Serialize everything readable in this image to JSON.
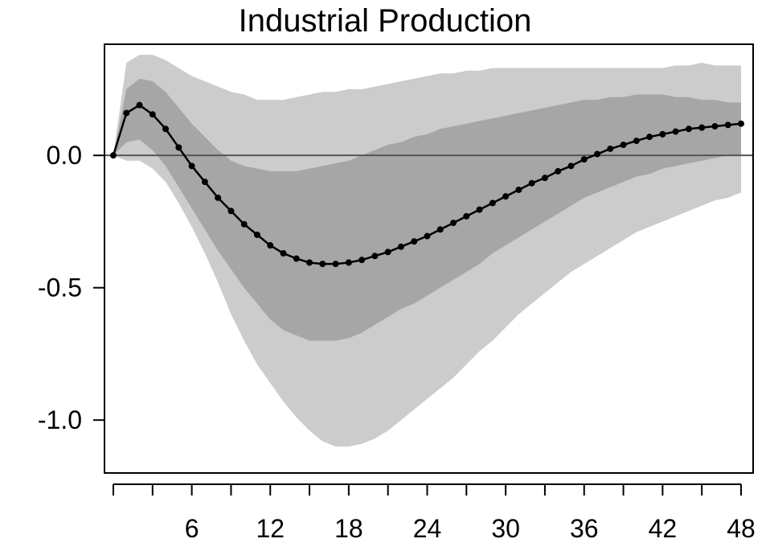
{
  "chart_data": {
    "type": "line",
    "title": "Industrial Production",
    "xlabel": "",
    "ylabel": "",
    "xlim": [
      0,
      48
    ],
    "ylim": [
      -1.2,
      0.42
    ],
    "x_ticks": [
      0,
      3,
      6,
      9,
      12,
      15,
      18,
      21,
      24,
      27,
      30,
      33,
      36,
      39,
      42,
      45,
      48
    ],
    "x_tick_labels": [
      "6",
      "12",
      "18",
      "24",
      "30",
      "36",
      "42",
      "48"
    ],
    "x_tick_label_values": [
      6,
      12,
      18,
      24,
      30,
      36,
      42,
      48
    ],
    "y_ticks": [
      0.0,
      -0.5,
      -1.0
    ],
    "y_tick_labels": [
      "0.0",
      "-0.5",
      "-1.0"
    ],
    "zero_line": 0,
    "colors": {
      "outer_band": "#cccccc",
      "inner_band": "#a6a6a6",
      "line": "#000000",
      "zero_line": "#555555"
    },
    "series": [
      {
        "values": [
          0.0,
          0.16,
          0.19,
          0.155,
          0.1,
          0.03,
          -0.04,
          -0.1,
          -0.16,
          -0.21,
          -0.26,
          -0.3,
          -0.34,
          -0.37,
          -0.39,
          -0.405,
          -0.41,
          -0.41,
          -0.405,
          -0.395,
          -0.38,
          -0.365,
          -0.345,
          -0.325,
          -0.305,
          -0.28,
          -0.255,
          -0.23,
          -0.205,
          -0.18,
          -0.155,
          -0.13,
          -0.105,
          -0.085,
          -0.06,
          -0.04,
          -0.015,
          0.005,
          0.025,
          0.04,
          0.055,
          0.07,
          0.08,
          0.09,
          0.1,
          0.105,
          0.11,
          0.115,
          0.12
        ]
      }
    ],
    "bands": [
      {
        "level": "outer",
        "upper": [
          0.0,
          0.35,
          0.38,
          0.38,
          0.36,
          0.33,
          0.3,
          0.28,
          0.26,
          0.24,
          0.23,
          0.21,
          0.21,
          0.21,
          0.22,
          0.23,
          0.24,
          0.24,
          0.25,
          0.25,
          0.26,
          0.27,
          0.28,
          0.29,
          0.3,
          0.31,
          0.31,
          0.32,
          0.32,
          0.33,
          0.33,
          0.33,
          0.33,
          0.33,
          0.33,
          0.33,
          0.33,
          0.33,
          0.33,
          0.33,
          0.33,
          0.33,
          0.33,
          0.34,
          0.34,
          0.35,
          0.34,
          0.34,
          0.34
        ],
        "lower": [
          0.0,
          -0.02,
          -0.02,
          -0.05,
          -0.1,
          -0.18,
          -0.27,
          -0.37,
          -0.48,
          -0.6,
          -0.7,
          -0.79,
          -0.86,
          -0.93,
          -0.99,
          -1.04,
          -1.08,
          -1.1,
          -1.1,
          -1.09,
          -1.07,
          -1.04,
          -1.0,
          -0.96,
          -0.92,
          -0.88,
          -0.84,
          -0.79,
          -0.74,
          -0.7,
          -0.65,
          -0.6,
          -0.56,
          -0.52,
          -0.48,
          -0.44,
          -0.41,
          -0.38,
          -0.35,
          -0.32,
          -0.29,
          -0.27,
          -0.25,
          -0.23,
          -0.21,
          -0.19,
          -0.17,
          -0.16,
          -0.14
        ]
      },
      {
        "level": "inner",
        "upper": [
          0.0,
          0.25,
          0.29,
          0.28,
          0.24,
          0.18,
          0.12,
          0.07,
          0.02,
          -0.02,
          -0.04,
          -0.05,
          -0.06,
          -0.06,
          -0.06,
          -0.05,
          -0.04,
          -0.03,
          -0.02,
          0.0,
          0.02,
          0.04,
          0.05,
          0.07,
          0.08,
          0.1,
          0.11,
          0.12,
          0.13,
          0.14,
          0.15,
          0.16,
          0.17,
          0.18,
          0.19,
          0.2,
          0.21,
          0.21,
          0.22,
          0.22,
          0.23,
          0.23,
          0.23,
          0.22,
          0.22,
          0.21,
          0.21,
          0.2,
          0.2
        ],
        "lower": [
          0.0,
          0.05,
          0.06,
          0.02,
          -0.04,
          -0.12,
          -0.2,
          -0.28,
          -0.36,
          -0.43,
          -0.5,
          -0.56,
          -0.62,
          -0.66,
          -0.68,
          -0.7,
          -0.7,
          -0.7,
          -0.69,
          -0.67,
          -0.64,
          -0.61,
          -0.58,
          -0.56,
          -0.53,
          -0.5,
          -0.47,
          -0.44,
          -0.41,
          -0.37,
          -0.34,
          -0.31,
          -0.28,
          -0.25,
          -0.22,
          -0.19,
          -0.16,
          -0.14,
          -0.12,
          -0.1,
          -0.08,
          -0.07,
          -0.05,
          -0.04,
          -0.03,
          -0.02,
          -0.01,
          0.0,
          0.0
        ]
      }
    ]
  }
}
